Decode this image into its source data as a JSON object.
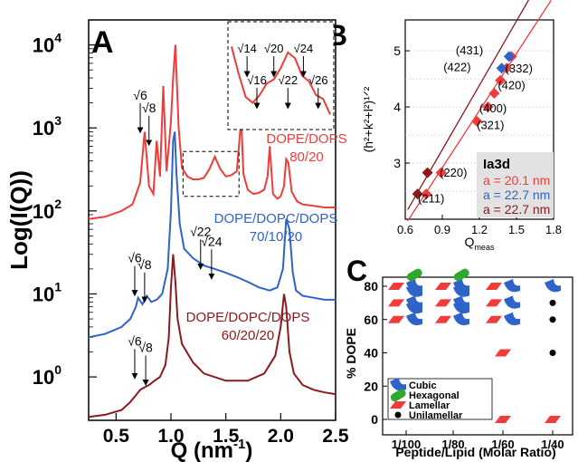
{
  "colors": {
    "red": "#f23b3b",
    "blue": "#2f63c9",
    "darkred": "#8b1a1f",
    "green": "#2daa2d",
    "black": "#000000",
    "cubic": "#2f63c9",
    "hexagonal": "#2daa2d",
    "lamellar": "#f23b3b"
  },
  "chart_data": [
    {
      "panel": "A",
      "type": "line",
      "xlabel": "Q (nm",
      "xlabel_sup": "-1",
      "xlabel_close": ")",
      "ylabel": "Log(I(Q))",
      "xlim": [
        0.25,
        2.5
      ],
      "yscale": "log",
      "ylim": [
        0.3,
        20000
      ],
      "x_ticks": [
        {
          "v": 0.5,
          "t": "0.5"
        },
        {
          "v": 1.0,
          "t": "1.0"
        },
        {
          "v": 1.5,
          "t": "1.5"
        },
        {
          "v": 2.0,
          "t": "2.0"
        },
        {
          "v": 2.5,
          "t": "2.5"
        }
      ],
      "y_ticks": [
        {
          "v": 1,
          "b": "10",
          "e": "0"
        },
        {
          "v": 10,
          "b": "10",
          "e": "1"
        },
        {
          "v": 100,
          "b": "10",
          "e": "2"
        },
        {
          "v": 1000,
          "b": "10",
          "e": "3"
        },
        {
          "v": 10000,
          "b": "10",
          "e": "4"
        }
      ],
      "series": [
        {
          "color": "red",
          "labels": [
            "DOPE/DOPS",
            "80/20"
          ],
          "x": [
            0.25,
            0.4,
            0.55,
            0.65,
            0.72,
            0.76,
            0.8,
            0.84,
            0.87,
            0.9,
            0.93,
            0.96,
            0.98,
            1.0,
            1.02,
            1.04,
            1.07,
            1.1,
            1.15,
            1.2,
            1.25,
            1.3,
            1.35,
            1.4,
            1.45,
            1.5,
            1.55,
            1.6,
            1.64,
            1.66,
            1.7,
            1.75,
            1.8,
            1.85,
            1.88,
            1.9,
            1.93,
            1.97,
            2.0,
            2.03,
            2.05,
            2.07,
            2.1,
            2.15,
            2.2,
            2.3,
            2.4,
            2.5
          ],
          "y": [
            80,
            85,
            100,
            120,
            220,
            900,
            200,
            160,
            700,
            260,
            3200,
            300,
            600,
            1200,
            4000,
            10000,
            1000,
            330,
            260,
            240,
            240,
            250,
            320,
            450,
            320,
            260,
            270,
            300,
            1300,
            280,
            180,
            160,
            165,
            180,
            260,
            600,
            160,
            140,
            150,
            200,
            420,
            380,
            170,
            130,
            120,
            115,
            110,
            110
          ]
        },
        {
          "color": "blue",
          "labels": [
            "DOPE/DOPC/DOPS",
            "70/10/20"
          ],
          "x": [
            0.25,
            0.4,
            0.55,
            0.63,
            0.68,
            0.7,
            0.74,
            0.78,
            0.82,
            0.87,
            0.92,
            0.97,
            1.0,
            1.02,
            1.035,
            1.05,
            1.08,
            1.12,
            1.2,
            1.3,
            1.4,
            1.5,
            1.6,
            1.7,
            1.8,
            1.9,
            1.97,
            2.02,
            2.05,
            2.08,
            2.11,
            2.14,
            2.2,
            2.3,
            2.4,
            2.5
          ],
          "y": [
            3,
            3.3,
            4,
            5,
            7,
            9,
            7.5,
            9.5,
            8,
            8.5,
            10,
            20,
            100,
            700,
            900,
            280,
            70,
            35,
            27,
            22,
            20,
            18,
            16,
            14,
            12,
            11,
            12,
            20,
            80,
            60,
            18,
            11,
            9.5,
            9,
            8.5,
            8.5
          ]
        },
        {
          "color": "darkred",
          "labels": [
            "DOPE/DOPC/DOPS",
            "60/20/20"
          ],
          "x": [
            0.25,
            0.4,
            0.55,
            0.63,
            0.68,
            0.72,
            0.76,
            0.8,
            0.85,
            0.9,
            0.95,
            0.98,
            1.0,
            1.02,
            1.04,
            1.06,
            1.1,
            1.2,
            1.3,
            1.5,
            1.7,
            1.85,
            1.95,
            2.0,
            2.03,
            2.05,
            2.08,
            2.12,
            2.2,
            2.3,
            2.4,
            2.5
          ],
          "y": [
            0.33,
            0.35,
            0.4,
            0.5,
            0.6,
            0.7,
            0.75,
            0.8,
            0.9,
            1.0,
            1.4,
            3,
            12,
            30,
            14,
            5,
            2.5,
            1.5,
            1.1,
            0.9,
            0.9,
            1.1,
            1.8,
            4,
            10,
            7,
            2,
            1.1,
            0.8,
            0.7,
            0.65,
            0.62
          ]
        }
      ],
      "annotations": [
        {
          "t": "√6",
          "x": 0.72,
          "y": 2200,
          "color": "black"
        },
        {
          "t": "√8",
          "x": 0.8,
          "y": 1550,
          "color": "black"
        },
        {
          "t": "√6",
          "x": 0.67,
          "y": 24,
          "color": "black"
        },
        {
          "t": "√8",
          "x": 0.76,
          "y": 20,
          "color": "black"
        },
        {
          "t": "√22",
          "x": 1.27,
          "y": 50,
          "color": "black"
        },
        {
          "t": "√24",
          "x": 1.37,
          "y": 38,
          "color": "black"
        },
        {
          "t": "√6",
          "x": 0.67,
          "y": 2.4,
          "color": "black"
        },
        {
          "t": "√8",
          "x": 0.77,
          "y": 2.0,
          "color": "black"
        }
      ],
      "inset": {
        "x": [
          0,
          1,
          2,
          3,
          4,
          5,
          6,
          7,
          8,
          9,
          10,
          11,
          12,
          13,
          14
        ],
        "y": [
          0.8,
          0.52,
          0.28,
          0.22,
          0.3,
          0.42,
          0.46,
          0.58,
          0.74,
          0.68,
          0.5,
          0.44,
          0.3,
          0.26,
          0.1
        ],
        "labels": [
          {
            "t": "√14",
            "x": 2.2
          },
          {
            "t": "√16",
            "x": 3.6
          },
          {
            "t": "√20",
            "x": 6.0
          },
          {
            "t": "√22",
            "x": 8.0
          },
          {
            "t": "√24",
            "x": 10.2
          },
          {
            "t": "√26",
            "x": 12.3
          }
        ]
      }
    },
    {
      "panel": "B",
      "type": "scatter",
      "xlabel": "Q",
      "xlabel_sub": "meas",
      "ylabel": "(h²+k²+l²)¹ᐟ²",
      "xlim": [
        0.6,
        1.8
      ],
      "ylim": [
        2.0,
        5.55
      ],
      "x_ticks": [
        {
          "v": 0.6,
          "t": "0.6"
        },
        {
          "v": 0.9,
          "t": "0.9"
        },
        {
          "v": 1.2,
          "t": "1.2"
        },
        {
          "v": 1.5,
          "t": "1.5"
        },
        {
          "v": 1.8,
          "t": "1.8"
        }
      ],
      "y_ticks": [
        {
          "v": 3,
          "t": "3"
        },
        {
          "v": 4,
          "t": "4"
        },
        {
          "v": 5,
          "t": "5"
        }
      ],
      "series": [
        {
          "color": "red",
          "x": [
            0.77,
            0.89,
            1.18,
            1.27,
            1.32,
            1.37,
            1.42,
            1.46
          ],
          "y": [
            2.449,
            2.828,
            3.742,
            4.0,
            4.243,
            4.472,
            4.69,
            4.899
          ]
        },
        {
          "color": "blue",
          "x": [
            1.38,
            1.44
          ],
          "y": [
            4.69,
            4.899
          ]
        },
        {
          "color": "darkred",
          "x": [
            0.7,
            0.78
          ],
          "y": [
            2.449,
            2.828
          ]
        }
      ],
      "fit_lines": [
        {
          "color": "red",
          "x": [
            0.62,
            1.78
          ],
          "y": [
            1.97,
            5.9
          ]
        },
        {
          "color": "darkred",
          "x": [
            0.62,
            1.78
          ],
          "y": [
            2.17,
            6.6
          ]
        }
      ],
      "point_labels": [
        {
          "t": "(211)",
          "x": 0.81,
          "y": 2.36
        },
        {
          "t": "(220)",
          "x": 0.99,
          "y": 2.82
        },
        {
          "t": "(321)",
          "x": 1.29,
          "y": 3.67
        },
        {
          "t": "(400)",
          "x": 1.31,
          "y": 3.97
        },
        {
          "t": "(420)",
          "x": 1.46,
          "y": 4.38
        },
        {
          "t": "(332)",
          "x": 1.52,
          "y": 4.68
        },
        {
          "t": "(422)",
          "x": 1.02,
          "y": 4.7
        },
        {
          "t": "(431)",
          "x": 1.12,
          "y": 5.0
        }
      ],
      "legend": {
        "title": "Ia3d",
        "entries": [
          {
            "t": "a = 20.1 nm",
            "color": "red"
          },
          {
            "t": "a = 22.7 nm",
            "color": "blue"
          },
          {
            "t": "a = 22.7 nm",
            "color": "darkred"
          }
        ]
      }
    },
    {
      "panel": "C",
      "type": "scatter",
      "xlabel": "Peptide/Lipid (Molar Ratio)",
      "ylabel": "% DOPE",
      "categories": [
        "1/100",
        "1/80",
        "1/60",
        "1/40"
      ],
      "ylim": [
        0,
        80
      ],
      "y_ticks": [
        {
          "v": 0,
          "t": "0"
        },
        {
          "v": 20,
          "t": "20"
        },
        {
          "v": 40,
          "t": "40"
        },
        {
          "v": 60,
          "t": "60"
        },
        {
          "v": 80,
          "t": "80"
        }
      ],
      "points": [
        {
          "cat": 0,
          "y": 80,
          "phases": [
            "lamellar",
            "cubic",
            "hexagonal"
          ]
        },
        {
          "cat": 0,
          "y": 70,
          "phases": [
            "lamellar",
            "cubic",
            "cubic"
          ]
        },
        {
          "cat": 0,
          "y": 60,
          "phases": [
            "lamellar",
            "cubic",
            "cubic"
          ]
        },
        {
          "cat": 1,
          "y": 80,
          "phases": [
            "lamellar",
            "cubic",
            "hexagonal"
          ]
        },
        {
          "cat": 1,
          "y": 70,
          "phases": [
            "lamellar",
            "cubic",
            "cubic"
          ]
        },
        {
          "cat": 1,
          "y": 60,
          "phases": [
            "lamellar",
            "cubic",
            "cubic"
          ]
        },
        {
          "cat": 2,
          "y": 80,
          "phases": [
            "lamellar",
            "cubic"
          ]
        },
        {
          "cat": 2,
          "y": 70,
          "phases": [
            "lamellar",
            "cubic"
          ]
        },
        {
          "cat": 2,
          "y": 60,
          "phases": [
            "lamellar",
            "cubic"
          ]
        },
        {
          "cat": 2,
          "y": 40,
          "phases": [
            "lamellar"
          ]
        },
        {
          "cat": 2,
          "y": 0,
          "phases": [
            "lamellar"
          ]
        },
        {
          "cat": 3,
          "y": 80,
          "phases": [
            "cubic"
          ]
        },
        {
          "cat": 3,
          "y": 70,
          "phases": [
            "unilamellar"
          ]
        },
        {
          "cat": 3,
          "y": 60,
          "phases": [
            "unilamellar"
          ]
        },
        {
          "cat": 3,
          "y": 40,
          "phases": [
            "unilamellar"
          ]
        },
        {
          "cat": 3,
          "y": 0,
          "phases": [
            "lamellar"
          ]
        }
      ],
      "legend": [
        {
          "t": "Cubic",
          "phase": "cubic"
        },
        {
          "t": "Hexagonal",
          "phase": "hexagonal"
        },
        {
          "t": "Lamellar",
          "phase": "lamellar"
        },
        {
          "t": "Unilamellar",
          "phase": "unilamellar"
        }
      ]
    }
  ]
}
